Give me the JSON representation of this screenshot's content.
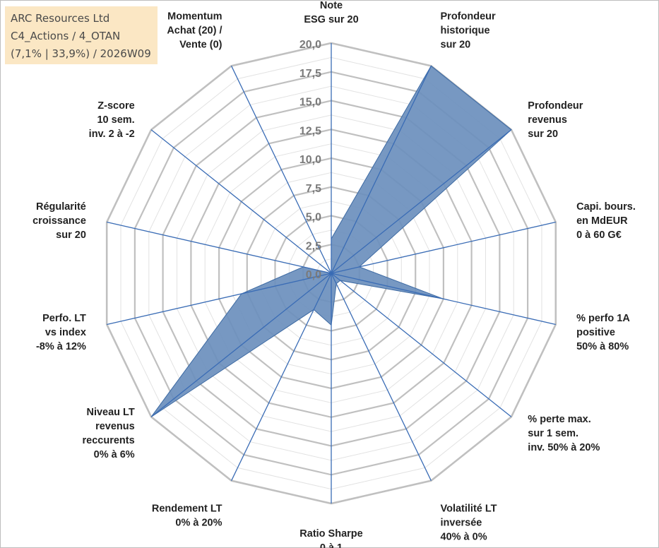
{
  "info": {
    "company": "ARC Resources Ltd",
    "portfolio": "C4_Actions / 4_OTAN",
    "stats": "(7,1% | 33,9%) / 2026W09"
  },
  "colors": {
    "fill": "#6b8fbd",
    "stroke": "#3d6aa3",
    "spoke": "#3a6cb5",
    "grid_major": "#c0c0c0",
    "grid_minor": "#e2e2e2",
    "label": "#222222",
    "tick": "#7a7a7a",
    "info_bg": "#fbe7c4"
  },
  "chart_data": {
    "type": "radar",
    "title": "",
    "rmin": 0,
    "rmax": 20,
    "major_step": 2.5,
    "tick_labels": [
      "0,0",
      "2,5",
      "5,0",
      "7,5",
      "10,0",
      "12,5",
      "15,0",
      "17,5",
      "20,0"
    ],
    "axes": [
      {
        "label": [
          "Note",
          "ESG sur 20"
        ],
        "value": 3
      },
      {
        "label": [
          "Profondeur",
          "historique",
          "sur 20"
        ],
        "value": 20
      },
      {
        "label": [
          "Profondeur",
          "revenus",
          "sur 20"
        ],
        "value": 20
      },
      {
        "label": [
          "Capi. bours.",
          "en MdEUR",
          "0 à 60 G€"
        ],
        "value": 2.5
      },
      {
        "label": [
          "% perfo 1A",
          "positive",
          "50% à 80%"
        ],
        "value": 10
      },
      {
        "label": [
          "% perte max.",
          "sur 1 sem.",
          "inv. 50% à 20%"
        ],
        "value": 1
      },
      {
        "label": [
          "Volatilité LT",
          "inversée",
          "40% à 0%"
        ],
        "value": 1
      },
      {
        "label": [
          "Ratio Sharpe",
          "0 à 1"
        ],
        "value": 4.5
      },
      {
        "label": [
          "Rendement LT",
          "0% à 20%"
        ],
        "value": 3.5
      },
      {
        "label": [
          "Niveau LT",
          "revenus",
          "reccurents",
          "0% à 6%"
        ],
        "value": 20
      },
      {
        "label": [
          "Perfo. LT",
          "vs index",
          "-8% à 12%"
        ],
        "value": 8
      },
      {
        "label": [
          "Régularité",
          "croissance",
          "sur 20"
        ],
        "value": 2.5
      },
      {
        "label": [
          "Z-score",
          "10 sem.",
          "inv. 2 à -2"
        ],
        "value": 0
      },
      {
        "label": [
          "Momentum",
          "Achat (20) /",
          "Vente (0)"
        ],
        "value": 0
      }
    ]
  }
}
